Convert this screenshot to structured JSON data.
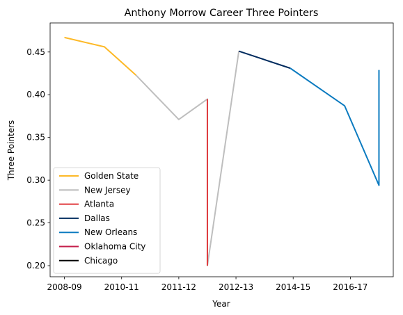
{
  "chart_data": {
    "type": "line",
    "title": "Anthony Morrow Career Three Pointers",
    "xlabel": "Year",
    "ylabel": "Three Pointers",
    "x_tick_labels": [
      "2008-09",
      "2010-11",
      "2011-12",
      "2012-13",
      "2014-15",
      "2016-17"
    ],
    "x_tick_positions": [
      0,
      2,
      4,
      6,
      8,
      10
    ],
    "xlim": [
      -0.5,
      11.5
    ],
    "ylim": [
      0.187,
      0.484
    ],
    "y_ticks": [
      0.2,
      0.25,
      0.3,
      0.35,
      0.4,
      0.45
    ],
    "y_tick_labels": [
      "0.20",
      "0.25",
      "0.30",
      "0.35",
      "0.40",
      "0.45"
    ],
    "grid": false,
    "legend_position": "lower-left",
    "series": [
      {
        "name": "Golden State",
        "color": "#FDB927",
        "points": [
          [
            0,
            0.467
          ],
          [
            1.4,
            0.456
          ],
          [
            2.5,
            0.423
          ]
        ]
      },
      {
        "name": "New Jersey",
        "color": "#BEBEBE",
        "points": [
          [
            2.5,
            0.423
          ],
          [
            4,
            0.371
          ],
          [
            5,
            0.395
          ],
          [
            5,
            0.2
          ],
          [
            6.1,
            0.451
          ]
        ]
      },
      {
        "name": "Atlanta",
        "color": "#E03A3E",
        "points": [
          [
            5,
            0.395
          ],
          [
            5,
            0.2
          ]
        ]
      },
      {
        "name": "Dallas",
        "color": "#002B5E",
        "points": [
          [
            6.1,
            0.451
          ],
          [
            7.9,
            0.431
          ]
        ]
      },
      {
        "name": "New Orleans",
        "color": "#0C7BC0",
        "points": [
          [
            7.9,
            0.431
          ],
          [
            9.8,
            0.387
          ],
          [
            11,
            0.294
          ],
          [
            11,
            0.429
          ]
        ]
      },
      {
        "name": "Oklahoma City",
        "color": "#C41E4A",
        "points": []
      },
      {
        "name": "Chicago",
        "color": "#000000",
        "points": []
      }
    ]
  }
}
